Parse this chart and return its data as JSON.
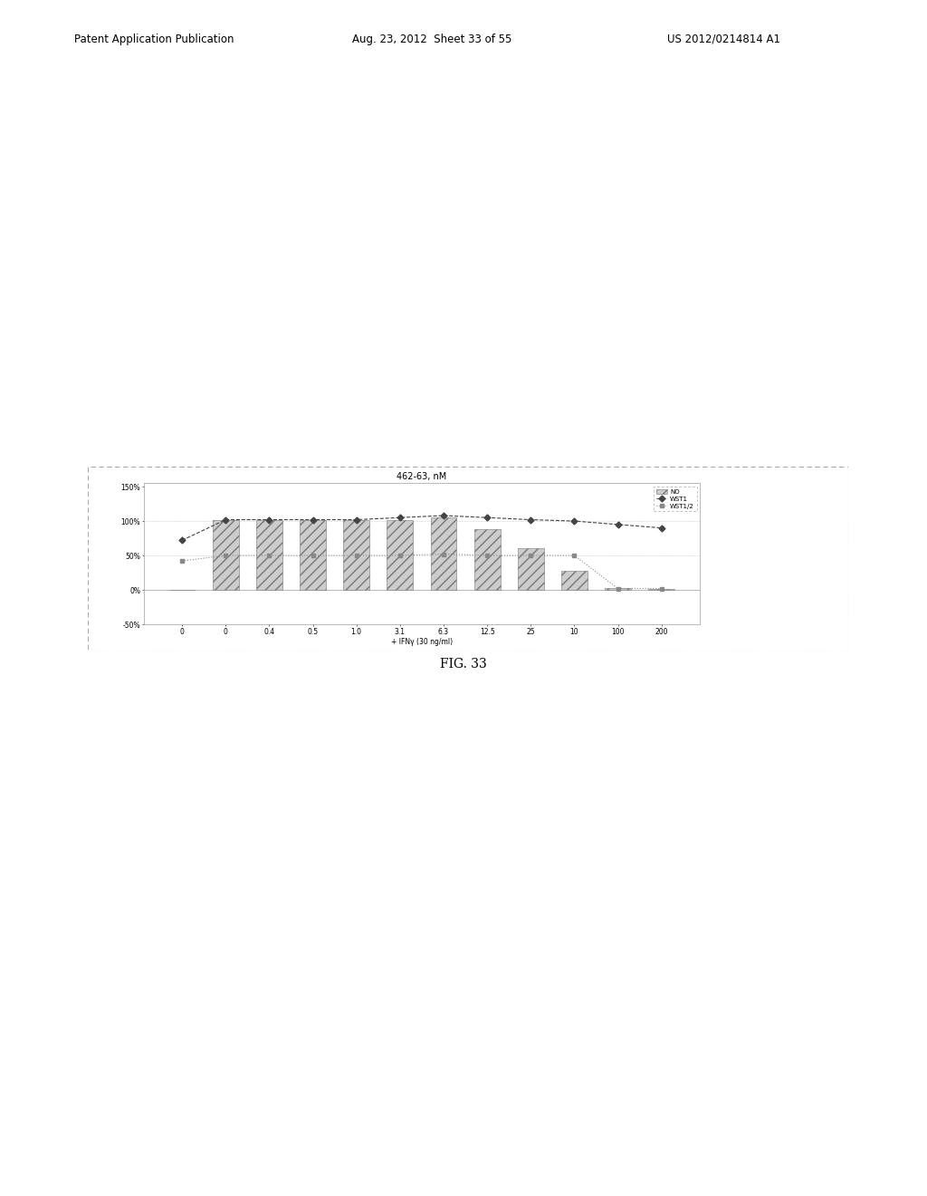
{
  "title": "462-63, nM",
  "xlabel": "+ IFNγ (30 ng/ml)",
  "x_labels": [
    "0",
    "0",
    "0.4",
    "0.5",
    "1.0",
    "3.1",
    "6.3",
    "12.5",
    "25",
    "10",
    "100",
    "200"
  ],
  "ylim": [
    -0.5,
    1.55
  ],
  "yticks": [
    -0.5,
    0.0,
    0.5,
    1.0,
    1.5
  ],
  "ytick_labels": [
    "-50%",
    "0%",
    "50%",
    "100%",
    "150%"
  ],
  "no_values": [
    0.0,
    1.02,
    1.02,
    1.02,
    1.02,
    1.02,
    1.05,
    0.88,
    0.6,
    0.28,
    0.03,
    0.02
  ],
  "wst1_values": [
    0.72,
    1.02,
    1.02,
    1.02,
    1.02,
    1.05,
    1.08,
    1.05,
    1.02,
    1.0,
    0.95,
    0.9
  ],
  "wst1_2_values": [
    0.42,
    0.5,
    0.5,
    0.5,
    0.5,
    0.5,
    0.52,
    0.5,
    0.5,
    0.5,
    0.02,
    0.02
  ],
  "bar_color": "#cccccc",
  "bar_hatch": "///",
  "bar_edge_color": "#777777",
  "wst1_color": "#444444",
  "wst1_2_color": "#888888",
  "background_color": "#ffffff",
  "legend_labels": [
    "NO",
    "WST1",
    "WST1/2"
  ],
  "fig_caption": "FIG. 33",
  "header_left": "Patent Application Publication",
  "header_mid": "Aug. 23, 2012  Sheet 33 of 55",
  "header_right": "US 2012/0214814 A1"
}
